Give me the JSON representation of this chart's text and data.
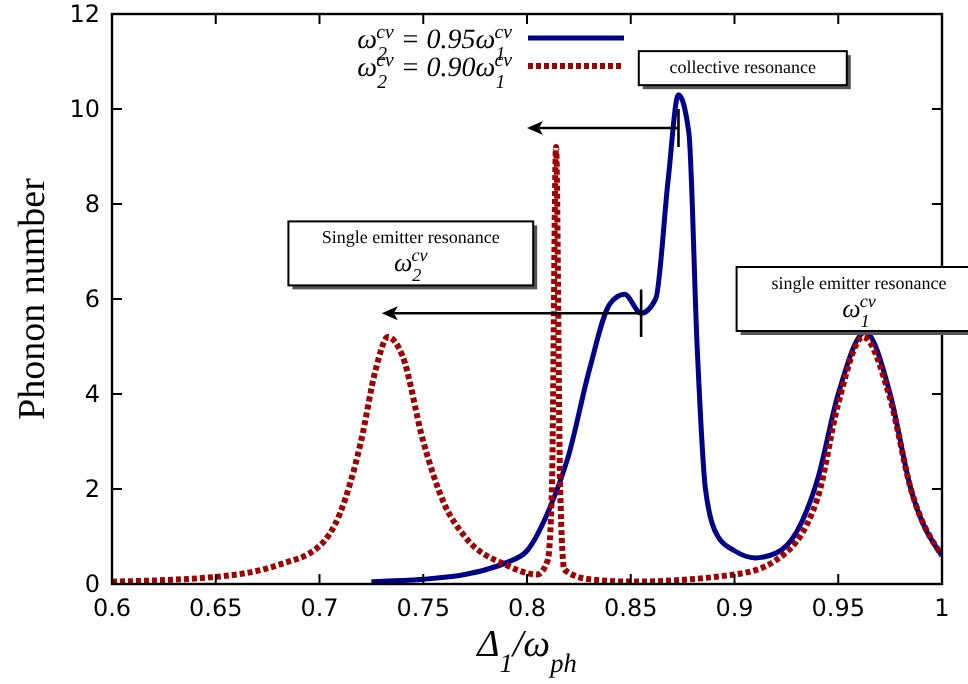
{
  "chart_data": {
    "type": "line",
    "xlabel": "Δ$_{1}$/ω$_{ph}$",
    "ylabel": "Phonon number",
    "xlim": [
      0.6,
      1
    ],
    "ylim": [
      0,
      12
    ],
    "xticks": [
      0.6,
      0.65,
      0.7,
      0.75,
      0.8,
      0.85,
      0.9,
      0.95,
      1
    ],
    "yticks": [
      0,
      2,
      4,
      6,
      8,
      10,
      12
    ],
    "grid": false,
    "legend": "top left",
    "marker": "none",
    "series": [
      {
        "name": "ω$_{2}$$^{cv}$ = 0.95ω$_{1}$$^{cv}$",
        "color": "#00008b",
        "line_style": "solid",
        "x": [
          0.725,
          0.75,
          0.77,
          0.78,
          0.79,
          0.8,
          0.81,
          0.82,
          0.83,
          0.84,
          0.847,
          0.855,
          0.862,
          0.868,
          0.873,
          0.878,
          0.882,
          0.886,
          0.892,
          0.9,
          0.91,
          0.92,
          0.93,
          0.94,
          0.95,
          0.963,
          0.975,
          0.985,
          1.0
        ],
        "values": [
          0.05,
          0.1,
          0.2,
          0.3,
          0.45,
          0.7,
          1.5,
          2.7,
          4.5,
          5.9,
          6.1,
          5.7,
          6.0,
          8.5,
          10.3,
          9.5,
          5.0,
          2.0,
          1.0,
          0.7,
          0.55,
          0.65,
          1.1,
          2.2,
          4.0,
          5.3,
          4.0,
          2.0,
          0.6
        ]
      },
      {
        "name": "ω$_{2}$$^{cv}$ = 0.90ω$_{1}$$^{cv}$",
        "color": "#a00000",
        "line_style": "dotted",
        "x": [
          0.6,
          0.65,
          0.68,
          0.7,
          0.71,
          0.72,
          0.727,
          0.733,
          0.74,
          0.75,
          0.76,
          0.77,
          0.79,
          0.805,
          0.81,
          0.812,
          0.814,
          0.816,
          0.818,
          0.83,
          0.85,
          0.9,
          0.92,
          0.94,
          0.95,
          0.962,
          0.975,
          0.985,
          1.0
        ],
        "values": [
          0.05,
          0.15,
          0.4,
          0.8,
          1.5,
          3.0,
          4.5,
          5.2,
          4.8,
          3.0,
          1.7,
          1.0,
          0.4,
          0.2,
          0.5,
          2.0,
          9.2,
          2.0,
          0.3,
          0.1,
          0.05,
          0.2,
          0.5,
          1.8,
          3.8,
          5.2,
          3.9,
          2.0,
          0.6
        ]
      }
    ],
    "annotations": [
      "collective resonance",
      "Single emitter resonance\nω$_{2}$$^{cv}$",
      "single emitter resonance\nω$_{1}$$^{cv}$"
    ]
  }
}
